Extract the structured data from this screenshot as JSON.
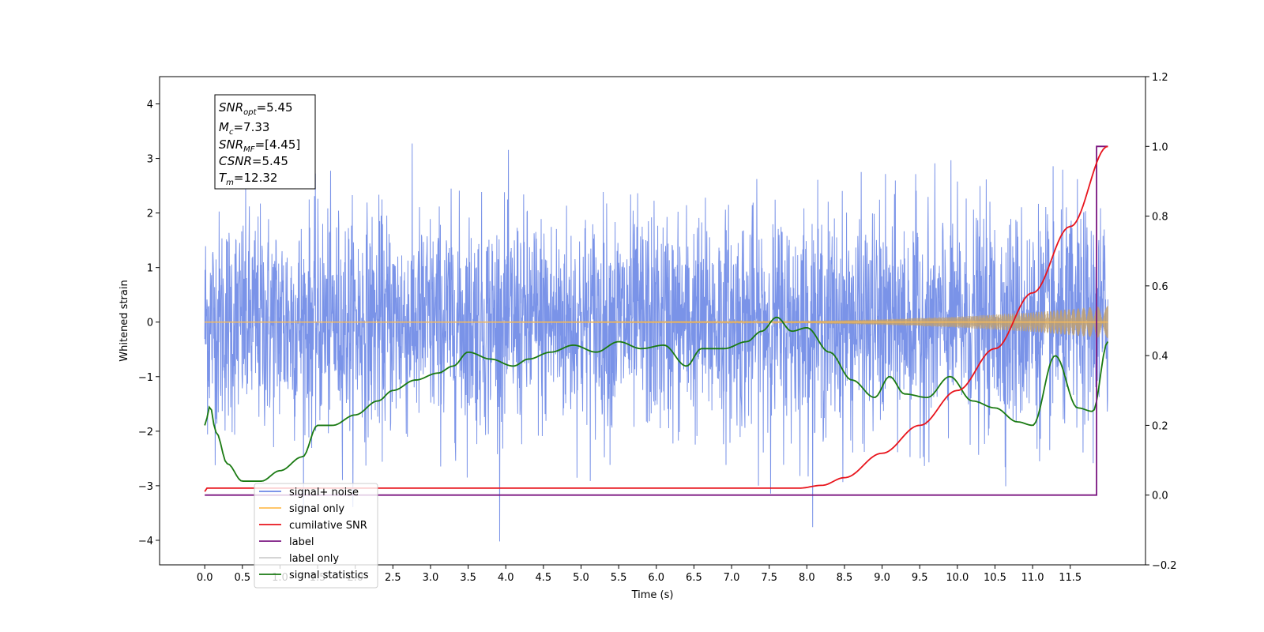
{
  "chart_data": {
    "type": "line",
    "xlabel": "Time (s)",
    "ylabel": "Whitened strain",
    "xlim": [
      -0.6,
      12.5
    ],
    "ylim": [
      -4.45,
      4.5
    ],
    "y2lim": [
      -0.2,
      1.2
    ],
    "xticks": [
      0.0,
      0.5,
      1.0,
      1.5,
      2.0,
      2.5,
      3.0,
      3.5,
      4.0,
      4.5,
      5.0,
      5.5,
      6.0,
      6.5,
      7.0,
      7.5,
      8.0,
      8.5,
      9.0,
      9.5,
      10.0,
      10.5,
      11.0,
      11.5
    ],
    "xtick_labels": [
      "0.0",
      "0.5",
      "1.0",
      "1.5",
      "2.0",
      "2.5",
      "3.0",
      "3.5",
      "4.0",
      "4.5",
      "5.0",
      "5.5",
      "6.0",
      "6.5",
      "7.0",
      "7.5",
      "8.0",
      "8.5",
      "9.0",
      "9.5",
      "10.0",
      "10.5",
      "11.0",
      "11.5"
    ],
    "yticks": [
      -4,
      -3,
      -2,
      -1,
      0,
      1,
      2,
      3,
      4
    ],
    "ytick_labels": [
      "−4",
      "−3",
      "−2",
      "−1",
      "0",
      "1",
      "2",
      "3",
      "4"
    ],
    "y2ticks": [
      -0.2,
      0.0,
      0.2,
      0.4,
      0.6,
      0.8,
      1.0,
      1.2
    ],
    "y2tick_labels": [
      "−0.2",
      "0.0",
      "0.2",
      "0.4",
      "0.6",
      "0.8",
      "1.0",
      "1.2"
    ],
    "grid": false,
    "legend_position": "bottom-left",
    "annotation": {
      "snr_opt": {
        "base": "SNR",
        "sub": "opt",
        "value": "=5.45"
      },
      "mc": {
        "base": "M",
        "sub": "c",
        "value": "=7.33"
      },
      "snr_mf": {
        "base": "SNR",
        "sub": "MF",
        "value": "=[4.45]"
      },
      "csnr": {
        "base": "CSNR",
        "value": "=5.45"
      },
      "tm": {
        "base": "T",
        "sub": "m",
        "value": "=12.32"
      }
    },
    "series": [
      {
        "name": "signal+ noise",
        "color": "#6b87e6",
        "axis": "left",
        "t_range": [
          0.0,
          12.0
        ],
        "amplitude_std": 1.0,
        "y_range": [
          -4.05,
          3.65
        ],
        "note_style": "dense noisy trace"
      },
      {
        "name": "signal only",
        "color": "#ffbe55",
        "axis": "left",
        "envelope": {
          "x": [
            0.0,
            7.0,
            8.0,
            9.0,
            10.0,
            11.0,
            12.0
          ],
          "y": [
            0.0,
            0.01,
            0.02,
            0.05,
            0.1,
            0.18,
            0.3
          ]
        }
      },
      {
        "name": "cumilative SNR",
        "color": "#e8141c",
        "axis": "right",
        "x": [
          0.0,
          0.01,
          7.9,
          8.2,
          8.5,
          9.0,
          9.5,
          10.0,
          10.5,
          11.0,
          11.5,
          12.0
        ],
        "y": [
          0.01,
          0.02,
          0.02,
          0.028,
          0.05,
          0.12,
          0.2,
          0.3,
          0.42,
          0.58,
          0.77,
          1.0
        ]
      },
      {
        "name": "label",
        "color": "#7a1580",
        "axis": "right",
        "x": [
          0.0,
          11.85,
          11.85,
          12.0
        ],
        "y": [
          0.0,
          0.0,
          1.0,
          1.0
        ]
      },
      {
        "name": "label only",
        "color": "#cfcfcf",
        "axis": "right",
        "x": [],
        "y": []
      },
      {
        "name": "signal statistics",
        "color": "#1a7a12",
        "axis": "right",
        "x": [
          0.0,
          0.07,
          0.15,
          0.3,
          0.5,
          0.75,
          1.0,
          1.3,
          1.5,
          1.7,
          2.0,
          2.3,
          2.5,
          2.8,
          3.1,
          3.3,
          3.5,
          3.8,
          4.1,
          4.3,
          4.6,
          4.9,
          5.2,
          5.5,
          5.8,
          6.1,
          6.4,
          6.6,
          6.9,
          7.2,
          7.4,
          7.6,
          7.8,
          8.0,
          8.3,
          8.6,
          8.9,
          9.1,
          9.3,
          9.6,
          9.9,
          10.2,
          10.5,
          10.8,
          11.0,
          11.3,
          11.6,
          11.8,
          12.0
        ],
        "y": [
          0.2,
          0.255,
          0.18,
          0.09,
          0.04,
          0.04,
          0.07,
          0.11,
          0.2,
          0.2,
          0.23,
          0.27,
          0.3,
          0.33,
          0.35,
          0.37,
          0.41,
          0.39,
          0.37,
          0.39,
          0.41,
          0.43,
          0.41,
          0.44,
          0.42,
          0.43,
          0.37,
          0.42,
          0.42,
          0.44,
          0.47,
          0.51,
          0.47,
          0.48,
          0.41,
          0.33,
          0.28,
          0.34,
          0.29,
          0.28,
          0.34,
          0.27,
          0.25,
          0.21,
          0.2,
          0.4,
          0.25,
          0.24,
          0.44
        ]
      }
    ]
  }
}
